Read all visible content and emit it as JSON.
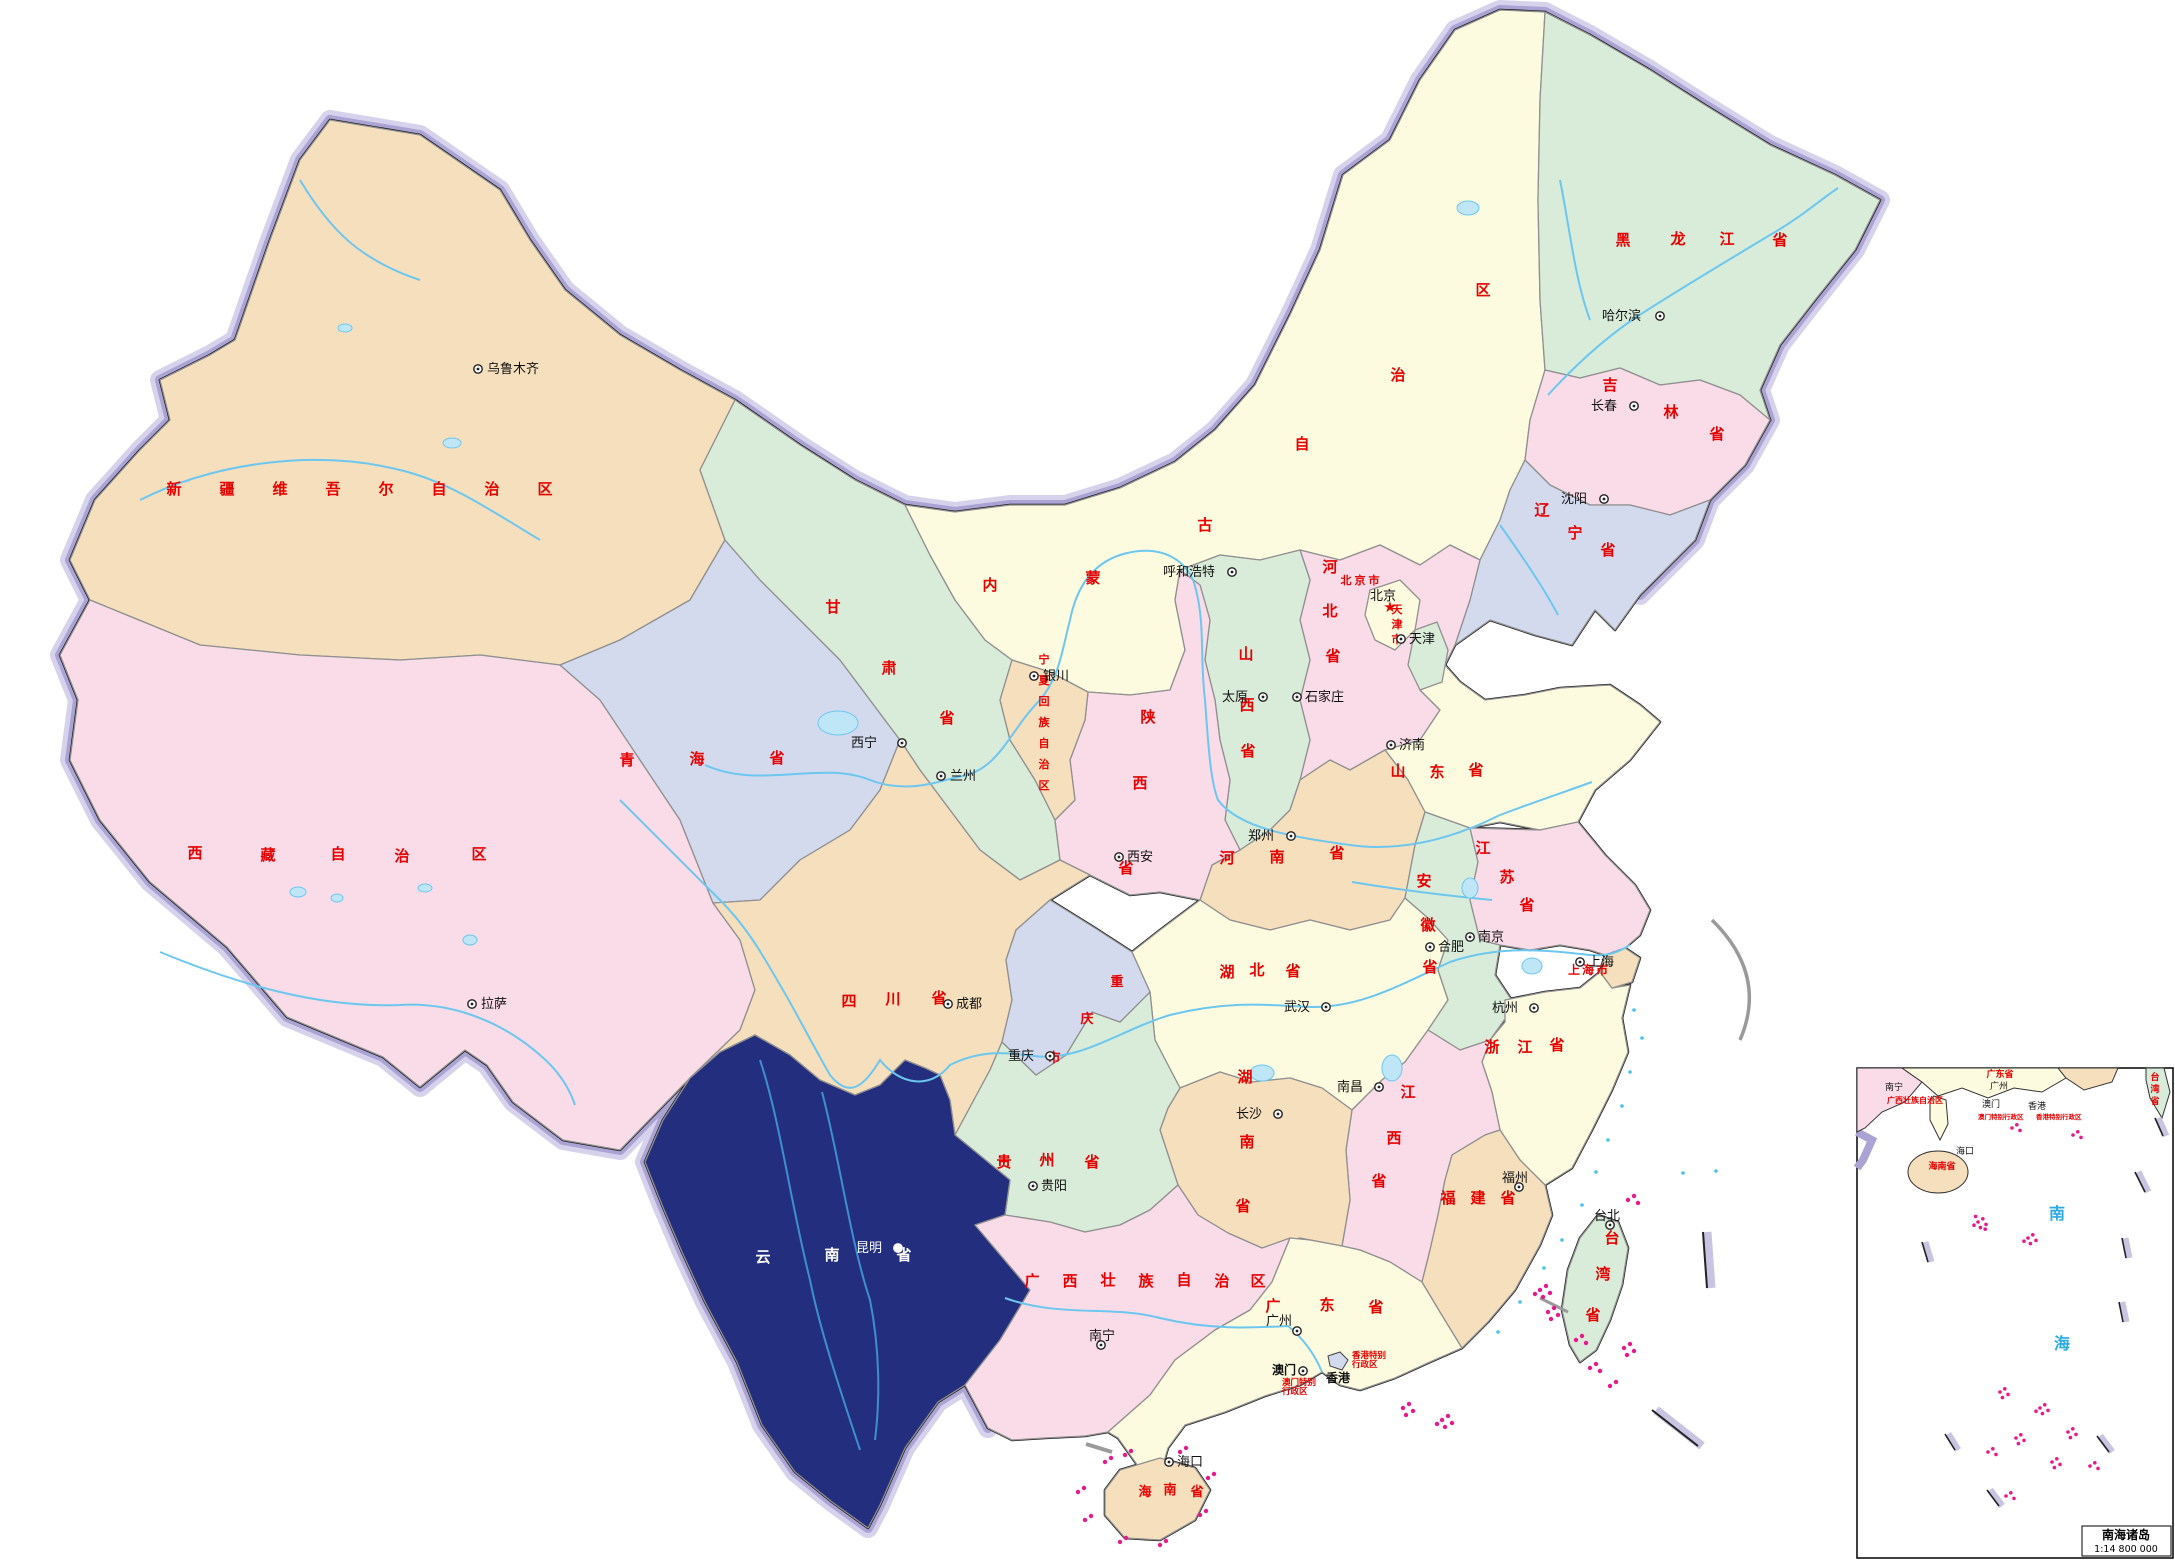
{
  "selected_province": "云南省",
  "colors": {
    "selected_fill": "#232f7e",
    "tan": "#f6dfbd",
    "pink": "#fadce8",
    "pale_yellow": "#fdfbdf",
    "light_green": "#d9ebd9",
    "lavender": "#d4daee",
    "label_red": "#e60000",
    "river_blue": "#6cc7f0",
    "island_magenta": "#e8188c",
    "border_glow": "#aaa3d4",
    "sea_label_blue": "#29abe2"
  },
  "provinces": [
    {
      "id": "xinjiang",
      "name": "新疆维吾尔自治区",
      "capital": "乌鲁木齐",
      "color": "#f6dfbd"
    },
    {
      "id": "xizang",
      "name": "西藏自治区",
      "capital": "拉萨",
      "color": "#fadce8"
    },
    {
      "id": "qinghai",
      "name": "青海省",
      "capital": "西宁",
      "color": "#d4daee"
    },
    {
      "id": "gansu",
      "name": "甘肃省",
      "capital": "兰州",
      "color": "#d9ebd9"
    },
    {
      "id": "neimenggu",
      "name": "内蒙古自治区",
      "capital": "呼和浩特",
      "color": "#fdfbdf"
    },
    {
      "id": "heilongjiang",
      "name": "黑龙江省",
      "capital": "哈尔滨",
      "color": "#d9ebd9"
    },
    {
      "id": "jilin",
      "name": "吉林省",
      "capital": "长春",
      "color": "#fadce8"
    },
    {
      "id": "liaoning",
      "name": "辽宁省",
      "capital": "沈阳",
      "color": "#d4daee"
    },
    {
      "id": "hebei",
      "name": "河北省",
      "capital": "石家庄",
      "color": "#fadce8"
    },
    {
      "id": "shanxi",
      "name": "山西省",
      "capital": "太原",
      "color": "#d9ebd9"
    },
    {
      "id": "shandong",
      "name": "山东省",
      "capital": "济南",
      "color": "#fdfbdf"
    },
    {
      "id": "henan",
      "name": "河南省",
      "capital": "郑州",
      "color": "#f6dfbd"
    },
    {
      "id": "shaanxi",
      "name": "陕西省",
      "capital": "西安",
      "color": "#fadce8"
    },
    {
      "id": "ningxia",
      "name": "宁夏回族自治区",
      "capital": "银川",
      "color": "#f6dfbd"
    },
    {
      "id": "sichuan",
      "name": "四川省",
      "capital": "成都",
      "color": "#f6dfbd"
    },
    {
      "id": "hubei",
      "name": "湖北省",
      "capital": "武汉",
      "color": "#fdfbdf"
    },
    {
      "id": "anhui",
      "name": "安徽省",
      "capital": "合肥",
      "color": "#d9ebd9"
    },
    {
      "id": "jiangsu",
      "name": "江苏省",
      "capital": "南京",
      "color": "#fadce8"
    },
    {
      "id": "zhejiang",
      "name": "浙江省",
      "capital": "杭州",
      "color": "#fdfbdf"
    },
    {
      "id": "jiangxi",
      "name": "江西省",
      "capital": "南昌",
      "color": "#fadce8"
    },
    {
      "id": "hunan",
      "name": "湖南省",
      "capital": "长沙",
      "color": "#f6dfbd"
    },
    {
      "id": "guizhou",
      "name": "贵州省",
      "capital": "贵阳",
      "color": "#d9ebd9"
    },
    {
      "id": "yunnan",
      "name": "云南省",
      "capital": "昆明",
      "color": "#232f7e",
      "selected": true
    },
    {
      "id": "guangxi",
      "name": "广西壮族自治区",
      "capital": "南宁",
      "color": "#fadce8"
    },
    {
      "id": "guangdong",
      "name": "广东省",
      "capital": "广州",
      "color": "#fdfbdf"
    },
    {
      "id": "fujian",
      "name": "福建省",
      "capital": "福州",
      "color": "#f6dfbd"
    },
    {
      "id": "hainan",
      "name": "海南省",
      "capital": "海口",
      "color": "#f6dfbd"
    },
    {
      "id": "taiwan",
      "name": "台湾省",
      "capital": "台北",
      "color": "#d9ebd9"
    },
    {
      "id": "beijing",
      "name": "北京市",
      "capital": "北京",
      "color": "#fdfbdf"
    },
    {
      "id": "tianjin",
      "name": "天津市",
      "capital": "天津",
      "color": "#d9ebd9"
    },
    {
      "id": "chongqing",
      "name": "重庆市",
      "capital": "重庆",
      "color": "#d4daee"
    },
    {
      "id": "shanghai",
      "name": "上海市",
      "capital": "上海",
      "color": "#f6dfbd"
    }
  ],
  "sar": [
    {
      "id": "xianggang",
      "name": "香港",
      "lines": [
        "香港特别",
        "行政区"
      ]
    },
    {
      "id": "aomen",
      "name": "澳门",
      "lines": [
        "澳门特别",
        "行政区"
      ]
    }
  ],
  "inset": {
    "region_label": "南海诸岛",
    "scale": "1:14 800 000",
    "sea": "南海",
    "labels": {
      "guangdong": "广东省",
      "guangxi": "广西壮族自治区",
      "hainan": "海南省",
      "taiwan": "台湾省",
      "nanning": "南宁",
      "guangzhou": "广州",
      "aomen": "澳门",
      "xianggang": "香港",
      "haikou": "海口",
      "aomen_sar": "澳门特别行政区",
      "xianggang_sar": "香港特别行政区"
    }
  }
}
